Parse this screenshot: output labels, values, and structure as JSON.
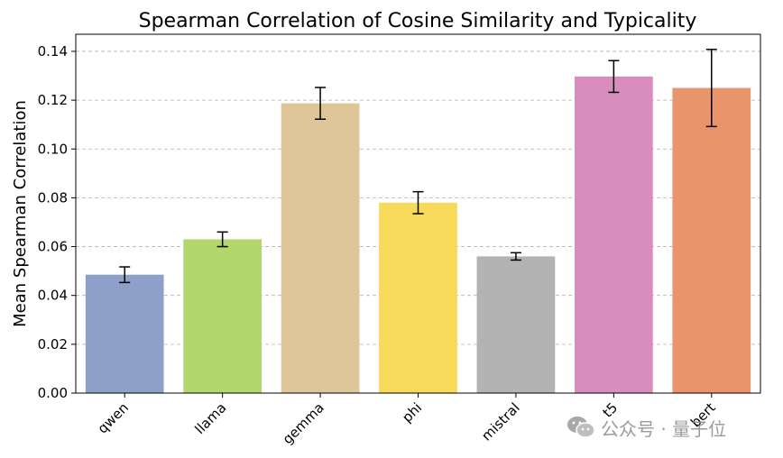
{
  "chart_data": {
    "type": "bar",
    "title": "Spearman Correlation of Cosine Similarity and Typicality",
    "xlabel": "",
    "ylabel": "Mean Spearman Correlation",
    "categories": [
      "qwen",
      "llama",
      "gemma",
      "phi",
      "mistral",
      "t5",
      "bert"
    ],
    "values": [
      0.0485,
      0.063,
      0.1187,
      0.078,
      0.056,
      0.1297,
      0.125
    ],
    "errors": [
      0.0032,
      0.003,
      0.0065,
      0.0045,
      0.0015,
      0.0065,
      0.0158
    ],
    "colors": [
      "#8fa0c8",
      "#b2d76a",
      "#dfc699",
      "#f7da5a",
      "#b3b3b3",
      "#d98dbf",
      "#ea946b"
    ],
    "ylim": [
      0,
      0.147
    ],
    "yticks": [
      0.0,
      0.02,
      0.04,
      0.06,
      0.08,
      0.1,
      0.12,
      0.14
    ],
    "ytick_labels": [
      "0.00",
      "0.02",
      "0.04",
      "0.06",
      "0.08",
      "0.10",
      "0.12",
      "0.14"
    ],
    "grid": true,
    "xtick_rotation_deg": 45
  },
  "watermark": {
    "icon": "wechat-icon",
    "text": "公众号 · 量子位"
  }
}
